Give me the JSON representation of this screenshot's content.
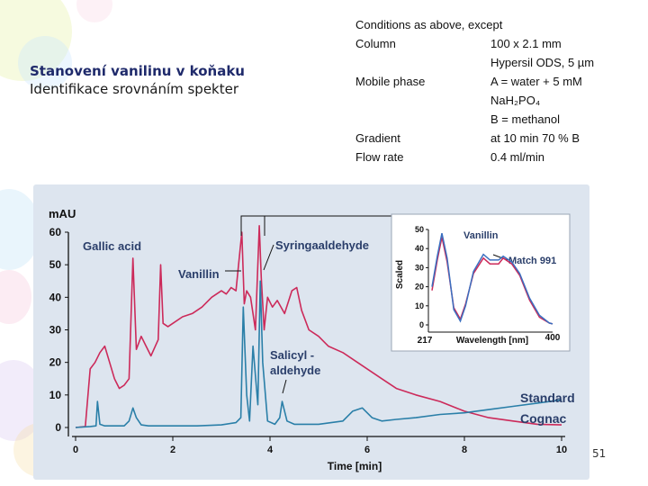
{
  "slide": {
    "title_line1": "Stanovení vanilinu v koňaku",
    "title_line2": "Identifikace srovnáním spekter",
    "page_number": "51"
  },
  "conditions": {
    "header": "Conditions as above, except",
    "rows": [
      {
        "key": "Column",
        "value": "100 x 2.1 mm"
      },
      {
        "key": "",
        "value": "Hypersil ODS, 5 µm"
      },
      {
        "key": "Mobile phase",
        "value": "A = water + 5 mM"
      },
      {
        "key": "",
        "value": "NaH₂PO₄"
      },
      {
        "key": "",
        "value": "B = methanol"
      },
      {
        "key": "Gradient",
        "value": "at 10 min 70 % B"
      },
      {
        "key": "Flow rate",
        "value": "0.4 ml/min"
      }
    ]
  },
  "colors": {
    "cognac": "#cc2a5a",
    "standard": "#2a7fa8",
    "panel": "#dde5ef",
    "spectrum_red": "#cc2a5a",
    "spectrum_blue": "#3a6fc0"
  },
  "chart_data": [
    {
      "type": "line",
      "title": "",
      "xlabel": "Time [min]",
      "ylabel": "mAU",
      "xlim": [
        0,
        10
      ],
      "ylim": [
        0,
        60
      ],
      "x_ticks": [
        0,
        2,
        4,
        6,
        8,
        10
      ],
      "y_ticks": [
        0,
        10,
        20,
        30,
        40,
        50,
        60
      ],
      "annotations": [
        "Gallic acid",
        "Vanillin",
        "Syringaaldehyde",
        "Salicyl -",
        "aldehyde"
      ],
      "series": [
        {
          "name": "Cognac",
          "x": [
            0,
            0.2,
            0.3,
            0.4,
            0.5,
            0.6,
            0.7,
            0.8,
            0.9,
            1.0,
            1.1,
            1.18,
            1.25,
            1.35,
            1.45,
            1.55,
            1.7,
            1.75,
            1.8,
            1.9,
            2.0,
            2.2,
            2.4,
            2.6,
            2.8,
            3.0,
            3.1,
            3.2,
            3.3,
            3.42,
            3.47,
            3.52,
            3.6,
            3.7,
            3.78,
            3.82,
            3.88,
            3.95,
            4.05,
            4.15,
            4.3,
            4.45,
            4.55,
            4.65,
            4.8,
            5.0,
            5.2,
            5.5,
            5.8,
            6.0,
            6.3,
            6.6,
            7.0,
            7.5,
            8.0,
            8.5,
            9.0,
            9.5,
            10.0
          ],
          "values": [
            0,
            0.3,
            18,
            20,
            23,
            25,
            20,
            15,
            12,
            13,
            15,
            52,
            24,
            28,
            25,
            22,
            27,
            50,
            32,
            31,
            32,
            34,
            35,
            37,
            40,
            42,
            41,
            43,
            42,
            60,
            38,
            42,
            40,
            30,
            62,
            46,
            30,
            40,
            37,
            39,
            35,
            42,
            43,
            36,
            30,
            28,
            25,
            23,
            20,
            18,
            15,
            12,
            10,
            8,
            5,
            3,
            2,
            1,
            0.8
          ]
        },
        {
          "name": "Standard",
          "x": [
            0,
            0.3,
            0.42,
            0.45,
            0.5,
            0.6,
            1.0,
            1.1,
            1.18,
            1.25,
            1.35,
            1.5,
            2.0,
            2.5,
            3.0,
            3.3,
            3.4,
            3.45,
            3.52,
            3.58,
            3.65,
            3.75,
            3.8,
            3.85,
            3.95,
            4.1,
            4.2,
            4.25,
            4.35,
            4.5,
            5.0,
            5.5,
            5.7,
            5.9,
            6.1,
            6.3,
            6.6,
            7.0,
            7.5,
            8.0,
            8.5,
            9.0,
            9.5,
            10.0
          ],
          "values": [
            0,
            0.3,
            0.5,
            8,
            1,
            0.5,
            0.5,
            2,
            6,
            3,
            0.8,
            0.5,
            0.5,
            0.5,
            0.8,
            1.5,
            3,
            37,
            10,
            2,
            25,
            7,
            45,
            20,
            2,
            1,
            3,
            8,
            2,
            1,
            1,
            2,
            5,
            6,
            3,
            2,
            2.5,
            3,
            4,
            4.5,
            5.5,
            6.5,
            7.5,
            8.5
          ]
        }
      ],
      "legend": [
        "Standard",
        "Cognac"
      ]
    },
    {
      "type": "line",
      "title": "Vanillin",
      "xlabel": "Wavelength [nm]",
      "ylabel": "Scaled",
      "xlim": [
        217,
        400
      ],
      "ylim": [
        0,
        50
      ],
      "x_ticks": [
        217,
        400
      ],
      "y_ticks": [
        0,
        10,
        20,
        30,
        40,
        50
      ],
      "annotations": [
        "Match 991"
      ],
      "series": [
        {
          "name": "Standard",
          "x": [
            217,
            225,
            232,
            240,
            250,
            260,
            268,
            280,
            295,
            305,
            318,
            325,
            338,
            350,
            365,
            380,
            395,
            400
          ],
          "values": [
            20,
            36,
            48,
            35,
            8,
            2,
            10,
            28,
            37,
            34,
            34,
            36,
            33,
            27,
            14,
            5,
            1,
            0.5
          ]
        },
        {
          "name": "Cognac",
          "x": [
            217,
            225,
            232,
            240,
            250,
            260,
            268,
            280,
            295,
            305,
            318,
            325,
            338,
            350,
            365,
            380,
            395,
            400
          ],
          "values": [
            18,
            34,
            46,
            33,
            9,
            3,
            11,
            27,
            35,
            32,
            32,
            35,
            32,
            26,
            13,
            4,
            1,
            0.5
          ]
        }
      ]
    }
  ]
}
